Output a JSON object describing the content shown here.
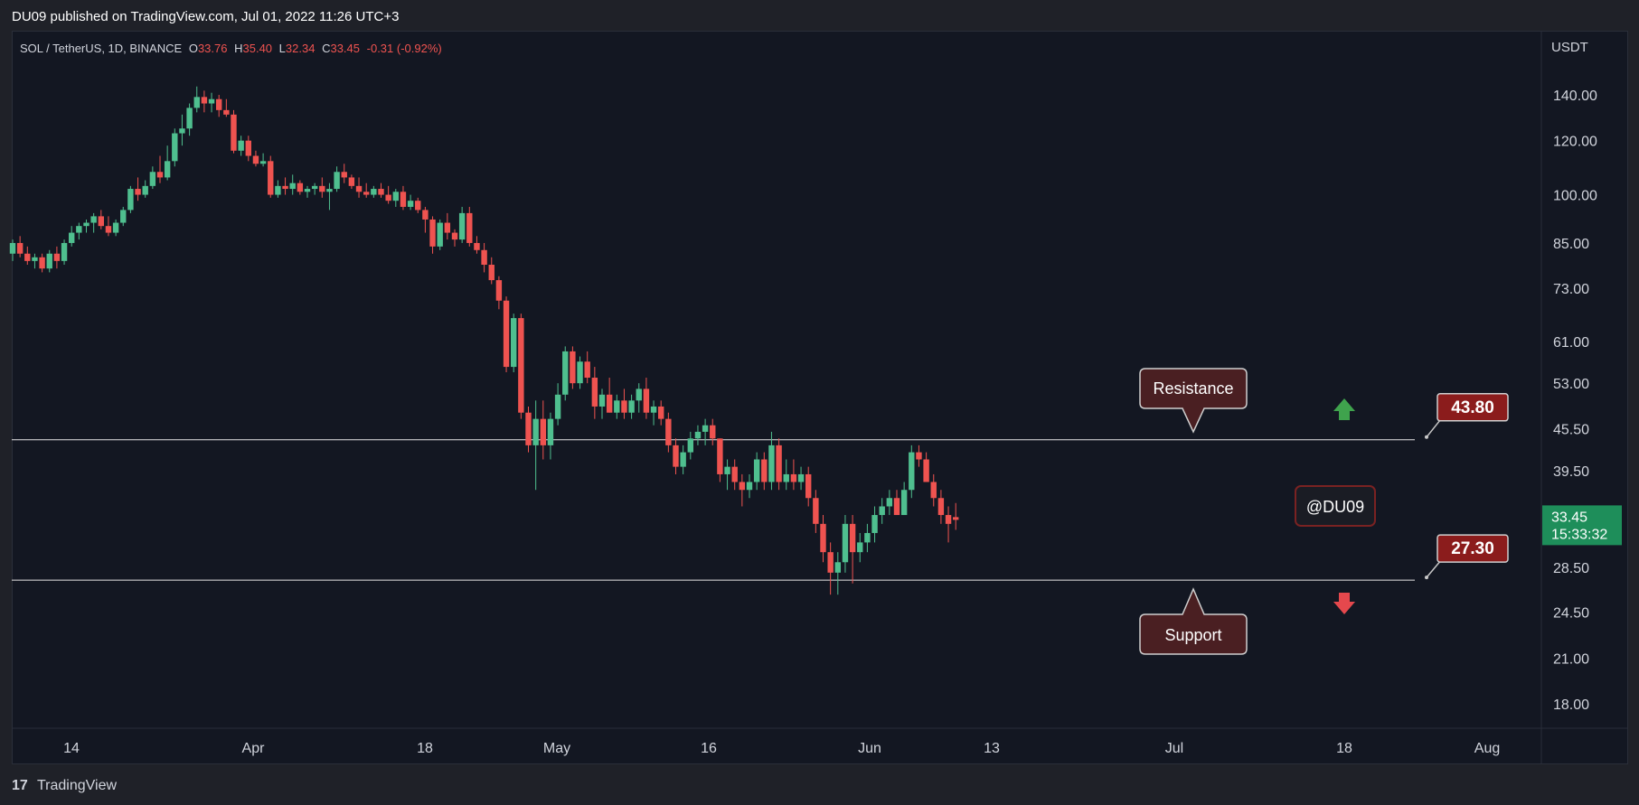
{
  "header": {
    "published": "DU09 published on TradingView.com, Jul 01, 2022 11:26 UTC+3"
  },
  "footer": {
    "brand": "TradingView"
  },
  "legend": {
    "symbol": "SOL / TetherUS, 1D, BINANCE",
    "o_label": "O",
    "o_value": "33.76",
    "h_label": "H",
    "h_value": "35.40",
    "l_label": "L",
    "l_value": "32.34",
    "c_label": "C",
    "c_value": "33.45",
    "change": "-0.31 (-0.92%)"
  },
  "colors": {
    "up": "#26a69a",
    "up_light": "#4fbf8f",
    "down": "#ef5350",
    "bg": "#131722",
    "outer": "#1f2128",
    "label_bg": "#8b1c1c",
    "callout_bg": "#4a1f22"
  },
  "chart_data": {
    "type": "candlestick",
    "y_unit": "USDT",
    "y_scale": "log",
    "y_ticks": [
      "140.00",
      "120.00",
      "100.00",
      "85.00",
      "73.00",
      "61.00",
      "53.00",
      "45.50",
      "39.50",
      "28.50",
      "24.50",
      "21.00",
      "18.00"
    ],
    "x_ticks": [
      "14",
      "Apr",
      "18",
      "May",
      "16",
      "Jun",
      "13",
      "Jul",
      "18",
      "Aug"
    ],
    "current_price": "33.45",
    "countdown": "15:33:32",
    "levels": [
      {
        "label": "43.80",
        "value": 43.8,
        "callout": "Resistance",
        "arrow": "up"
      },
      {
        "label": "27.30",
        "value": 27.3,
        "callout": "Support",
        "arrow": "down"
      }
    ],
    "watermark": "@DU09",
    "candles": [
      {
        "d": "2022-03-09",
        "o": 82,
        "h": 86,
        "l": 80,
        "c": 85
      },
      {
        "d": "2022-03-10",
        "o": 85,
        "h": 87,
        "l": 81,
        "c": 82
      },
      {
        "d": "2022-03-11",
        "o": 82,
        "h": 84,
        "l": 79,
        "c": 80
      },
      {
        "d": "2022-03-12",
        "o": 80,
        "h": 82,
        "l": 78,
        "c": 81
      },
      {
        "d": "2022-03-13",
        "o": 81,
        "h": 82,
        "l": 77,
        "c": 78
      },
      {
        "d": "2022-03-14",
        "o": 78,
        "h": 83,
        "l": 77,
        "c": 82
      },
      {
        "d": "2022-03-15",
        "o": 82,
        "h": 84,
        "l": 78,
        "c": 80
      },
      {
        "d": "2022-03-16",
        "o": 80,
        "h": 86,
        "l": 79,
        "c": 85
      },
      {
        "d": "2022-03-17",
        "o": 85,
        "h": 90,
        "l": 84,
        "c": 88
      },
      {
        "d": "2022-03-18",
        "o": 88,
        "h": 91,
        "l": 86,
        "c": 90
      },
      {
        "d": "2022-03-19",
        "o": 90,
        "h": 92,
        "l": 88,
        "c": 91
      },
      {
        "d": "2022-03-20",
        "o": 91,
        "h": 94,
        "l": 88,
        "c": 93
      },
      {
        "d": "2022-03-21",
        "o": 93,
        "h": 95,
        "l": 89,
        "c": 90
      },
      {
        "d": "2022-03-22",
        "o": 90,
        "h": 93,
        "l": 87,
        "c": 88
      },
      {
        "d": "2022-03-23",
        "o": 88,
        "h": 92,
        "l": 87,
        "c": 91
      },
      {
        "d": "2022-03-24",
        "o": 91,
        "h": 96,
        "l": 90,
        "c": 95
      },
      {
        "d": "2022-03-25",
        "o": 95,
        "h": 103,
        "l": 94,
        "c": 102
      },
      {
        "d": "2022-03-26",
        "o": 102,
        "h": 106,
        "l": 98,
        "c": 100
      },
      {
        "d": "2022-03-27",
        "o": 100,
        "h": 105,
        "l": 99,
        "c": 103
      },
      {
        "d": "2022-03-28",
        "o": 103,
        "h": 110,
        "l": 102,
        "c": 108
      },
      {
        "d": "2022-03-29",
        "o": 108,
        "h": 114,
        "l": 104,
        "c": 106
      },
      {
        "d": "2022-03-30",
        "o": 106,
        "h": 118,
        "l": 105,
        "c": 112
      },
      {
        "d": "2022-03-31",
        "o": 112,
        "h": 125,
        "l": 110,
        "c": 123
      },
      {
        "d": "2022-04-01",
        "o": 123,
        "h": 131,
        "l": 118,
        "c": 125
      },
      {
        "d": "2022-04-02",
        "o": 125,
        "h": 136,
        "l": 122,
        "c": 134
      },
      {
        "d": "2022-04-03",
        "o": 134,
        "h": 144,
        "l": 132,
        "c": 139
      },
      {
        "d": "2022-04-04",
        "o": 139,
        "h": 142,
        "l": 132,
        "c": 136
      },
      {
        "d": "2022-04-05",
        "o": 136,
        "h": 141,
        "l": 132,
        "c": 138
      },
      {
        "d": "2022-04-06",
        "o": 138,
        "h": 140,
        "l": 130,
        "c": 133
      },
      {
        "d": "2022-04-07",
        "o": 133,
        "h": 138,
        "l": 130,
        "c": 131
      },
      {
        "d": "2022-04-08",
        "o": 131,
        "h": 133,
        "l": 115,
        "c": 116
      },
      {
        "d": "2022-04-09",
        "o": 116,
        "h": 122,
        "l": 114,
        "c": 120
      },
      {
        "d": "2022-04-10",
        "o": 120,
        "h": 122,
        "l": 112,
        "c": 114
      },
      {
        "d": "2022-04-11",
        "o": 114,
        "h": 116,
        "l": 110,
        "c": 111
      },
      {
        "d": "2022-04-12",
        "o": 111,
        "h": 115,
        "l": 110,
        "c": 112
      },
      {
        "d": "2022-04-13",
        "o": 112,
        "h": 114,
        "l": 99,
        "c": 100
      },
      {
        "d": "2022-04-14",
        "o": 100,
        "h": 105,
        "l": 99,
        "c": 103
      },
      {
        "d": "2022-04-15",
        "o": 103,
        "h": 106,
        "l": 100,
        "c": 102
      },
      {
        "d": "2022-04-16",
        "o": 102,
        "h": 107,
        "l": 100,
        "c": 104
      },
      {
        "d": "2022-04-17",
        "o": 104,
        "h": 105,
        "l": 100,
        "c": 101
      },
      {
        "d": "2022-04-18",
        "o": 101,
        "h": 103,
        "l": 99,
        "c": 102
      },
      {
        "d": "2022-04-19",
        "o": 102,
        "h": 104,
        "l": 100,
        "c": 103
      },
      {
        "d": "2022-04-20",
        "o": 103,
        "h": 106,
        "l": 99,
        "c": 101
      },
      {
        "d": "2022-04-21",
        "o": 101,
        "h": 104,
        "l": 95,
        "c": 102
      },
      {
        "d": "2022-04-22",
        "o": 102,
        "h": 110,
        "l": 101,
        "c": 108
      },
      {
        "d": "2022-04-23",
        "o": 108,
        "h": 111,
        "l": 104,
        "c": 106
      },
      {
        "d": "2022-04-24",
        "o": 106,
        "h": 107,
        "l": 102,
        "c": 103
      },
      {
        "d": "2022-04-25",
        "o": 103,
        "h": 106,
        "l": 99,
        "c": 101
      },
      {
        "d": "2022-04-26",
        "o": 101,
        "h": 104,
        "l": 99,
        "c": 100
      },
      {
        "d": "2022-04-27",
        "o": 100,
        "h": 103,
        "l": 99,
        "c": 102
      },
      {
        "d": "2022-04-28",
        "o": 102,
        "h": 104,
        "l": 99,
        "c": 100
      },
      {
        "d": "2022-04-29",
        "o": 100,
        "h": 103,
        "l": 97,
        "c": 98
      },
      {
        "d": "2022-04-30",
        "o": 98,
        "h": 102,
        "l": 96,
        "c": 101
      },
      {
        "d": "2022-05-01",
        "o": 101,
        "h": 103,
        "l": 95,
        "c": 96
      },
      {
        "d": "2022-05-02",
        "o": 96,
        "h": 100,
        "l": 95,
        "c": 98
      },
      {
        "d": "2022-05-03",
        "o": 98,
        "h": 99,
        "l": 94,
        "c": 95
      },
      {
        "d": "2022-05-04",
        "o": 95,
        "h": 96,
        "l": 88,
        "c": 92
      },
      {
        "d": "2022-05-05",
        "o": 92,
        "h": 93,
        "l": 82,
        "c": 84
      },
      {
        "d": "2022-05-06",
        "o": 84,
        "h": 92,
        "l": 83,
        "c": 91
      },
      {
        "d": "2022-05-07",
        "o": 91,
        "h": 94,
        "l": 86,
        "c": 88
      },
      {
        "d": "2022-05-08",
        "o": 88,
        "h": 89,
        "l": 84,
        "c": 86
      },
      {
        "d": "2022-05-09",
        "o": 86,
        "h": 96,
        "l": 85,
        "c": 94
      },
      {
        "d": "2022-05-10",
        "o": 94,
        "h": 96,
        "l": 84,
        "c": 85
      },
      {
        "d": "2022-05-11",
        "o": 85,
        "h": 87,
        "l": 82,
        "c": 83
      },
      {
        "d": "2022-05-12",
        "o": 83,
        "h": 85,
        "l": 77,
        "c": 79
      },
      {
        "d": "2022-05-13",
        "o": 79,
        "h": 81,
        "l": 74,
        "c": 75
      },
      {
        "d": "2022-05-14",
        "o": 75,
        "h": 76,
        "l": 68,
        "c": 70
      },
      {
        "d": "2022-05-15",
        "o": 70,
        "h": 71,
        "l": 55,
        "c": 56
      },
      {
        "d": "2022-05-16",
        "o": 56,
        "h": 67,
        "l": 55,
        "c": 66
      },
      {
        "d": "2022-05-17",
        "o": 66,
        "h": 67,
        "l": 47,
        "c": 48
      },
      {
        "d": "2022-05-18",
        "o": 48,
        "h": 49,
        "l": 42,
        "c": 43
      },
      {
        "d": "2022-05-19",
        "o": 43,
        "h": 50,
        "l": 37,
        "c": 47
      },
      {
        "d": "2022-05-20",
        "o": 47,
        "h": 50,
        "l": 41,
        "c": 43
      },
      {
        "d": "2022-05-21",
        "o": 43,
        "h": 48,
        "l": 41,
        "c": 47
      },
      {
        "d": "2022-05-22",
        "o": 47,
        "h": 53,
        "l": 46,
        "c": 51
      },
      {
        "d": "2022-05-23",
        "o": 51,
        "h": 60,
        "l": 50,
        "c": 59
      },
      {
        "d": "2022-05-24",
        "o": 59,
        "h": 60,
        "l": 52,
        "c": 53
      },
      {
        "d": "2022-05-25",
        "o": 53,
        "h": 58,
        "l": 52,
        "c": 57
      },
      {
        "d": "2022-05-26",
        "o": 57,
        "h": 59,
        "l": 53,
        "c": 54
      },
      {
        "d": "2022-05-27",
        "o": 54,
        "h": 56,
        "l": 47,
        "c": 49
      },
      {
        "d": "2022-05-28",
        "o": 49,
        "h": 52,
        "l": 47,
        "c": 51
      },
      {
        "d": "2022-05-29",
        "o": 51,
        "h": 54,
        "l": 48,
        "c": 48
      },
      {
        "d": "2022-05-30",
        "o": 48,
        "h": 51,
        "l": 47,
        "c": 50
      },
      {
        "d": "2022-05-31",
        "o": 50,
        "h": 52,
        "l": 47,
        "c": 48
      },
      {
        "d": "2022-06-01",
        "o": 48,
        "h": 51,
        "l": 47,
        "c": 50
      },
      {
        "d": "2022-06-02",
        "o": 50,
        "h": 53,
        "l": 48,
        "c": 52
      },
      {
        "d": "2022-06-03",
        "o": 52,
        "h": 54,
        "l": 47,
        "c": 48
      },
      {
        "d": "2022-06-04",
        "o": 48,
        "h": 50,
        "l": 46,
        "c": 49
      },
      {
        "d": "2022-06-05",
        "o": 49,
        "h": 50,
        "l": 46,
        "c": 47
      },
      {
        "d": "2022-06-06",
        "o": 47,
        "h": 48,
        "l": 42,
        "c": 43
      },
      {
        "d": "2022-06-07",
        "o": 43,
        "h": 44,
        "l": 39,
        "c": 40
      },
      {
        "d": "2022-06-08",
        "o": 40,
        "h": 43,
        "l": 39,
        "c": 42
      },
      {
        "d": "2022-06-09",
        "o": 42,
        "h": 45,
        "l": 41,
        "c": 44
      },
      {
        "d": "2022-06-10",
        "o": 44,
        "h": 46,
        "l": 43,
        "c": 45
      },
      {
        "d": "2022-06-11",
        "o": 45,
        "h": 47,
        "l": 43,
        "c": 46
      },
      {
        "d": "2022-06-12",
        "o": 46,
        "h": 47,
        "l": 43,
        "c": 44
      },
      {
        "d": "2022-06-13",
        "o": 44,
        "h": 44,
        "l": 38,
        "c": 39
      },
      {
        "d": "2022-06-14",
        "o": 39,
        "h": 41,
        "l": 37,
        "c": 40
      },
      {
        "d": "2022-06-15",
        "o": 40,
        "h": 41,
        "l": 37,
        "c": 38
      },
      {
        "d": "2022-06-16",
        "o": 38,
        "h": 39,
        "l": 35,
        "c": 37
      },
      {
        "d": "2022-06-17",
        "o": 37,
        "h": 39,
        "l": 36,
        "c": 38
      },
      {
        "d": "2022-06-18",
        "o": 38,
        "h": 42,
        "l": 37,
        "c": 41
      },
      {
        "d": "2022-06-19",
        "o": 41,
        "h": 42,
        "l": 37,
        "c": 38
      },
      {
        "d": "2022-06-20",
        "o": 38,
        "h": 45,
        "l": 37,
        "c": 43
      },
      {
        "d": "2022-06-21",
        "o": 43,
        "h": 44,
        "l": 37,
        "c": 38
      },
      {
        "d": "2022-06-22",
        "o": 38,
        "h": 41,
        "l": 37,
        "c": 39
      },
      {
        "d": "2022-06-23",
        "o": 39,
        "h": 41,
        "l": 37,
        "c": 38
      },
      {
        "d": "2022-06-24",
        "o": 38,
        "h": 40,
        "l": 37,
        "c": 39
      },
      {
        "d": "2022-06-25",
        "o": 39,
        "h": 40,
        "l": 35,
        "c": 36
      },
      {
        "d": "2022-06-26",
        "o": 36,
        "h": 37,
        "l": 32,
        "c": 33
      },
      {
        "d": "2022-06-27",
        "o": 33,
        "h": 34,
        "l": 29,
        "c": 30
      },
      {
        "d": "2022-06-28",
        "o": 30,
        "h": 31,
        "l": 26,
        "c": 28
      },
      {
        "d": "2022-06-29",
        "o": 28,
        "h": 30,
        "l": 26,
        "c": 29
      },
      {
        "d": "2022-06-30",
        "o": 29,
        "h": 34,
        "l": 28,
        "c": 33
      },
      {
        "d": "2022-07-01",
        "o": 33,
        "h": 34,
        "l": 27,
        "c": 30
      },
      {
        "d": "2022-07-02",
        "o": 30,
        "h": 32,
        "l": 29,
        "c": 31
      },
      {
        "d": "2022-07-03",
        "o": 31,
        "h": 33,
        "l": 30,
        "c": 32
      },
      {
        "d": "2022-07-04",
        "o": 32,
        "h": 35,
        "l": 31,
        "c": 34
      },
      {
        "d": "2022-07-05",
        "o": 34,
        "h": 36,
        "l": 33,
        "c": 35
      },
      {
        "d": "2022-07-06",
        "o": 35,
        "h": 37,
        "l": 34,
        "c": 36
      },
      {
        "d": "2022-07-07",
        "o": 36,
        "h": 37,
        "l": 34,
        "c": 34
      },
      {
        "d": "2022-07-08",
        "o": 34,
        "h": 38,
        "l": 34,
        "c": 37
      },
      {
        "d": "2022-07-09",
        "o": 37,
        "h": 43,
        "l": 36,
        "c": 42
      },
      {
        "d": "2022-07-10",
        "o": 42,
        "h": 43,
        "l": 40,
        "c": 41
      },
      {
        "d": "2022-07-11",
        "o": 41,
        "h": 42,
        "l": 38,
        "c": 38
      },
      {
        "d": "2022-07-12",
        "o": 38,
        "h": 39,
        "l": 35,
        "c": 36
      },
      {
        "d": "2022-07-13",
        "o": 36,
        "h": 37,
        "l": 33,
        "c": 34
      },
      {
        "d": "2022-07-14",
        "o": 34,
        "h": 35,
        "l": 31,
        "c": 33
      },
      {
        "d": "2022-07-15",
        "o": 33.76,
        "h": 35.4,
        "l": 32.34,
        "c": 33.45
      }
    ]
  }
}
